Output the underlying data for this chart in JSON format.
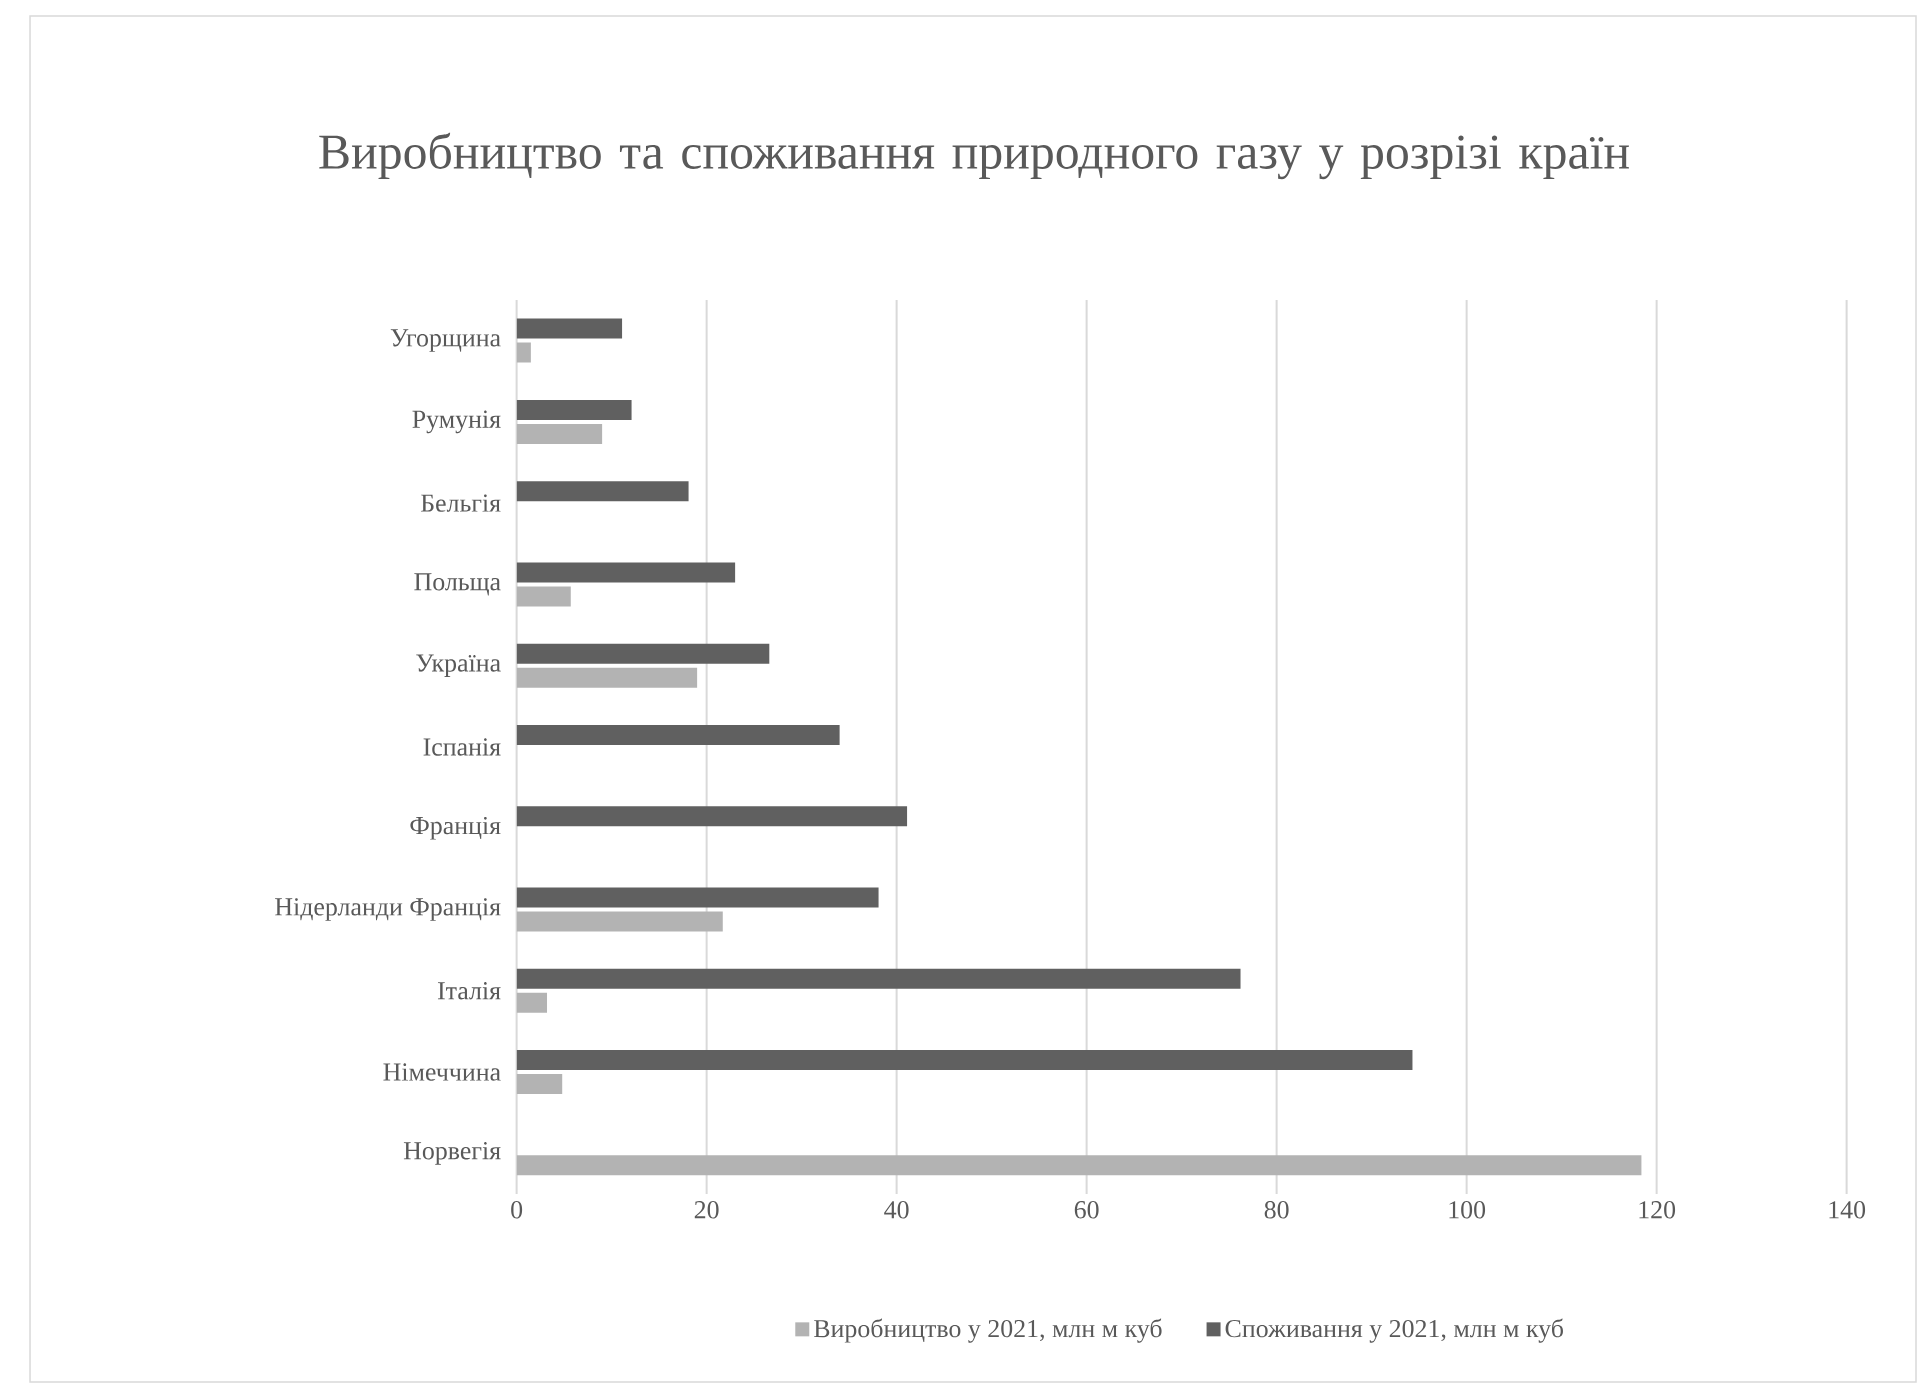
{
  "chart_data": {
    "type": "bar",
    "orientation": "horizontal",
    "title": "Виробництво та споживання природного газу у розрізі країн",
    "categories": [
      "Угорщина",
      "Румунія",
      "Бельгія",
      "Польща",
      "Україна",
      "Іспанія",
      "Франція",
      "Нідерланди Франція",
      "Італія",
      "Німеччина",
      "Норвегія"
    ],
    "series": [
      {
        "name": "Виробництво у 2021, млн м куб",
        "color": "#b3b3b3",
        "values": [
          1.5,
          9.0,
          null,
          5.7,
          19.0,
          null,
          null,
          21.7,
          3.2,
          4.8,
          118.4
        ]
      },
      {
        "name": "Споживання у 2021, млн м куб",
        "color": "#606060",
        "values": [
          11.1,
          12.1,
          18.1,
          23.0,
          26.6,
          34.0,
          41.1,
          38.1,
          76.2,
          94.3,
          null
        ]
      }
    ],
    "xlim": [
      0,
      140
    ],
    "xticks": [
      0,
      20,
      40,
      60,
      80,
      100,
      120,
      140
    ],
    "grid": "x",
    "legend": "bottom"
  }
}
